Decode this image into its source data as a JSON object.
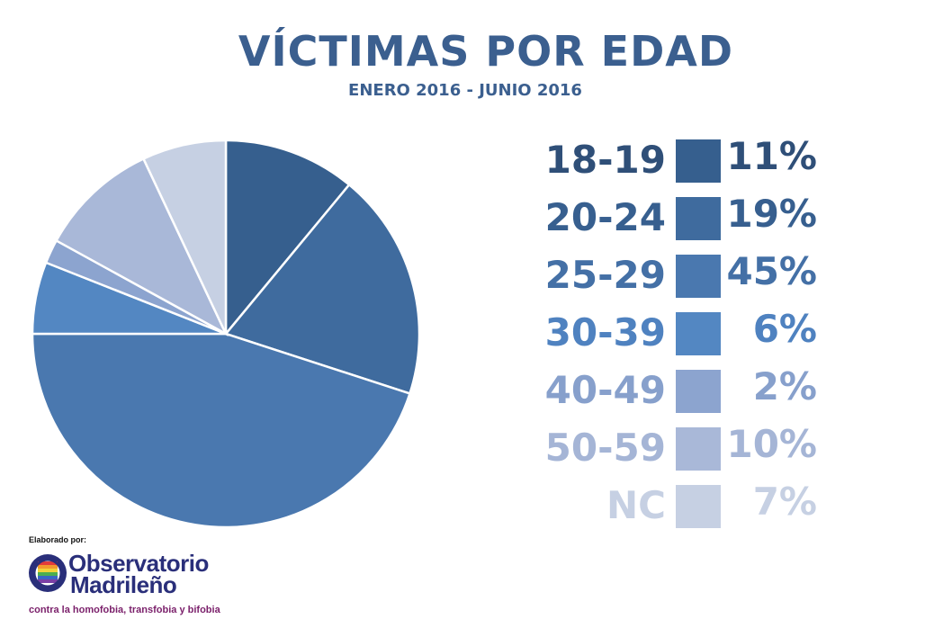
{
  "header": {
    "title": "VÍCTIMAS POR EDAD",
    "subtitle": "ENERO 2016 - JUNIO 2016"
  },
  "chart_data": {
    "type": "pie",
    "title": "VÍCTIMAS POR EDAD",
    "subtitle": "ENERO 2016 - JUNIO 2016",
    "categories": [
      "18-19",
      "20-24",
      "25-29",
      "30-39",
      "40-49",
      "50-59",
      "NC"
    ],
    "values": [
      11,
      19,
      45,
      6,
      2,
      10,
      7
    ],
    "value_labels": [
      "11%",
      "19%",
      "45%",
      "6%",
      "2%",
      "10%",
      "7%"
    ],
    "unit": "%",
    "colors": [
      "#365f8e",
      "#3f6b9e",
      "#4a78af",
      "#5387c2",
      "#8ca4cf",
      "#a9b8d8",
      "#c6d0e3"
    ],
    "legend_text_colors": [
      "#2f4f78",
      "#375f8f",
      "#4470a6",
      "#4f82c0",
      "#87a0cc",
      "#a5b5d6",
      "#c6d0e3"
    ],
    "start_angle": "12 o'clock",
    "direction": "clockwise",
    "legend_position": "right"
  },
  "credit": {
    "label": "Elaborado por:",
    "org_line1": "Observatorio",
    "org_line2": "Madrileño",
    "tagline": "contra la homofobia, transfobia y bifobia"
  }
}
